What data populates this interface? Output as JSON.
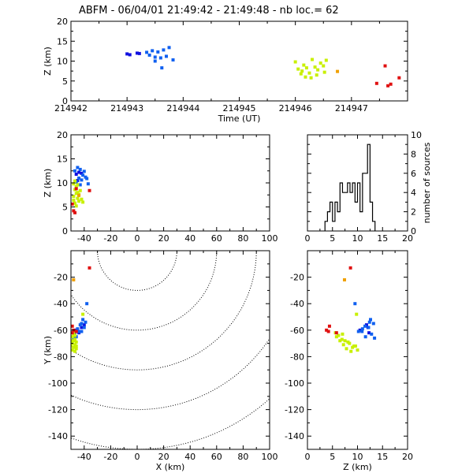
{
  "figure": {
    "title": "ABFM - 06/04/01 21:49:42 - 21:49:48 - nb loc.=      62"
  },
  "colors": {
    "blue_dark": "#1010e0",
    "blue": "#1060f0",
    "yellow_green": "#c8f000",
    "yellow": "#e8e000",
    "orange": "#f0a000",
    "red": "#e01010",
    "axis": "#000000"
  },
  "chart_data": [
    {
      "id": "time_altitude",
      "type": "scatter",
      "title": "",
      "xlabel": "Time (UT)",
      "ylabel": "Z (km)",
      "xlim": [
        214942,
        214948
      ],
      "ylim": [
        0,
        20
      ],
      "xticks": [
        214942,
        214943,
        214944,
        214945,
        214946,
        214947
      ],
      "yticks": [
        0,
        5,
        10,
        15,
        20
      ],
      "series": [
        {
          "color": "#1010e0",
          "points": [
            [
              214943.0,
              11.8
            ],
            [
              214943.05,
              11.6
            ],
            [
              214943.18,
              12.0
            ],
            [
              214943.22,
              11.9
            ]
          ]
        },
        {
          "color": "#1060f0",
          "points": [
            [
              214943.35,
              12.2
            ],
            [
              214943.4,
              11.5
            ],
            [
              214943.45,
              12.6
            ],
            [
              214943.5,
              11.0
            ],
            [
              214943.55,
              12.3
            ],
            [
              214943.6,
              10.8
            ],
            [
              214943.65,
              12.8
            ],
            [
              214943.7,
              11.2
            ],
            [
              214943.75,
              13.4
            ],
            [
              214943.62,
              8.3
            ],
            [
              214943.82,
              10.3
            ],
            [
              214943.5,
              10.0
            ]
          ]
        },
        {
          "color": "#c8f000",
          "points": [
            [
              214946.0,
              9.8
            ],
            [
              214946.05,
              8.0
            ],
            [
              214946.1,
              6.8
            ],
            [
              214946.12,
              7.5
            ],
            [
              214946.15,
              9.0
            ],
            [
              214946.18,
              6.0
            ],
            [
              214946.2,
              8.3
            ],
            [
              214946.25,
              7.0
            ],
            [
              214946.28,
              5.8
            ],
            [
              214946.3,
              10.4
            ],
            [
              214946.35,
              8.5
            ],
            [
              214946.38,
              6.5
            ],
            [
              214946.4,
              7.8
            ],
            [
              214946.45,
              9.5
            ],
            [
              214946.5,
              8.8
            ],
            [
              214946.52,
              7.2
            ],
            [
              214946.55,
              10.2
            ]
          ]
        },
        {
          "color": "#f0a000",
          "points": [
            [
              214946.75,
              7.4
            ]
          ]
        },
        {
          "color": "#e01010",
          "points": [
            [
              214947.45,
              4.4
            ],
            [
              214947.6,
              8.8
            ],
            [
              214947.65,
              3.8
            ],
            [
              214947.7,
              4.2
            ],
            [
              214947.85,
              5.8
            ]
          ]
        }
      ]
    },
    {
      "id": "x_altitude",
      "type": "scatter",
      "title": "",
      "xlabel": "",
      "ylabel": "Z (km)",
      "xlim": [
        -50,
        100
      ],
      "ylim": [
        0,
        20
      ],
      "xticks": [
        -40,
        -20,
        0,
        20,
        40,
        60,
        80,
        100
      ],
      "yticks": [
        0,
        5,
        10,
        15,
        20
      ],
      "series": [
        {
          "color": "#1010e0",
          "points": [
            [
              -46,
              11.8
            ],
            [
              -44,
              12.2
            ],
            [
              -42,
              12.0
            ],
            [
              -45,
              10.5
            ]
          ]
        },
        {
          "color": "#1060f0",
          "points": [
            [
              -47,
              12.5
            ],
            [
              -45,
              13.2
            ],
            [
              -43,
              12.8
            ],
            [
              -41,
              11.6
            ],
            [
              -39,
              11.2
            ],
            [
              -44,
              11.0
            ],
            [
              -42,
              10.6
            ],
            [
              -46,
              10.2
            ],
            [
              -40,
              12.4
            ],
            [
              -37,
              9.8
            ],
            [
              -38,
              10.9
            ],
            [
              -43,
              9.6
            ]
          ]
        },
        {
          "color": "#c8f000",
          "points": [
            [
              -48,
              9.8
            ],
            [
              -47,
              8.6
            ],
            [
              -46,
              7.8
            ],
            [
              -45,
              6.8
            ],
            [
              -44,
              6.2
            ],
            [
              -48,
              7.2
            ],
            [
              -47,
              5.8
            ],
            [
              -46,
              9.2
            ],
            [
              -45,
              8.0
            ],
            [
              -44,
              7.6
            ],
            [
              -42,
              6.6
            ],
            [
              -41,
              6.0
            ],
            [
              -43,
              8.4
            ],
            [
              -48,
              6.4
            ],
            [
              -46,
              5.2
            ],
            [
              -45,
              9.6
            ],
            [
              -47,
              10.4
            ]
          ]
        },
        {
          "color": "#f0a000",
          "points": [
            [
              -44,
              7.4
            ]
          ]
        },
        {
          "color": "#e01010",
          "points": [
            [
              -49,
              5.6
            ],
            [
              -48,
              4.2
            ],
            [
              -47,
              3.8
            ],
            [
              -46,
              8.8
            ],
            [
              -36,
              8.4
            ]
          ]
        }
      ]
    },
    {
      "id": "altitude_histogram",
      "type": "bar",
      "title": "",
      "xlabel": "",
      "ylabel": "number of sources",
      "xlim": [
        0,
        20
      ],
      "ylim": [
        0,
        10
      ],
      "xticks": [
        0,
        5,
        10,
        15,
        20
      ],
      "yticks": [
        0,
        2,
        4,
        6,
        8,
        10
      ],
      "bin_width": 0.5,
      "categories": [
        3.5,
        4,
        4.5,
        5,
        5.5,
        6,
        6.5,
        7,
        7.5,
        8,
        8.5,
        9,
        9.5,
        10,
        10.5,
        11,
        11.5,
        12,
        12.5,
        13
      ],
      "values": [
        1,
        2,
        3,
        1,
        3,
        2,
        5,
        4,
        4,
        5,
        4,
        5,
        3,
        5,
        2,
        6,
        6,
        9,
        3,
        1
      ]
    },
    {
      "id": "plan_view",
      "type": "scatter",
      "title": "",
      "xlabel": "X (km)",
      "ylabel": "Y (km)",
      "xlim": [
        -50,
        100
      ],
      "ylim": [
        -150,
        0
      ],
      "xticks": [
        -40,
        -20,
        0,
        20,
        40,
        60,
        80,
        100
      ],
      "yticks": [
        -20,
        -40,
        -60,
        -80,
        -100,
        -120,
        -140
      ],
      "range_rings_km": [
        30,
        60,
        90,
        120,
        150
      ],
      "series": [
        {
          "color": "#1010e0",
          "points": [
            [
              -42,
              -58
            ],
            [
              -40,
              -56
            ],
            [
              -44,
              -62
            ],
            [
              -46,
              -60
            ]
          ]
        },
        {
          "color": "#1060f0",
          "points": [
            [
              -41,
              -52
            ],
            [
              -42,
              -55
            ],
            [
              -40,
              -58
            ],
            [
              -43,
              -56
            ],
            [
              -45,
              -59
            ],
            [
              -47,
              -63
            ],
            [
              -48,
              -66
            ],
            [
              -44,
              -61
            ],
            [
              -46,
              -65
            ],
            [
              -39,
              -54
            ],
            [
              -38,
              -40
            ],
            [
              -42,
              -61
            ]
          ]
        },
        {
          "color": "#c8f000",
          "points": [
            [
              -49,
              -65
            ],
            [
              -48,
              -68
            ],
            [
              -47,
              -71
            ],
            [
              -46,
              -74
            ],
            [
              -49,
              -70
            ],
            [
              -48,
              -73
            ],
            [
              -47,
              -67
            ],
            [
              -50,
              -72
            ],
            [
              -46,
              -69
            ],
            [
              -48,
              -63
            ],
            [
              -47,
              -76
            ],
            [
              -49,
              -75
            ],
            [
              -46,
              -72
            ],
            [
              -47,
              -64
            ],
            [
              -48,
              -62
            ],
            [
              -50,
              -68
            ],
            [
              -41,
              -48
            ]
          ]
        },
        {
          "color": "#f0a000",
          "points": [
            [
              -48,
              -22
            ]
          ]
        },
        {
          "color": "#e01010",
          "points": [
            [
              -36,
              -13
            ],
            [
              -49,
              -57
            ],
            [
              -48,
              -60
            ],
            [
              -46,
              -61
            ],
            [
              -49,
              -62
            ]
          ]
        }
      ]
    },
    {
      "id": "altitude_y",
      "type": "scatter",
      "title": "",
      "xlabel": "Z (km)",
      "ylabel": "",
      "xlim": [
        0,
        20
      ],
      "ylim": [
        -150,
        0
      ],
      "xticks": [
        0,
        5,
        10,
        15,
        20
      ],
      "yticks": [
        -20,
        -40,
        -60,
        -80,
        -100,
        -120,
        -140
      ],
      "series": [
        {
          "color": "#1010e0",
          "points": [
            [
              12.1,
              -58
            ],
            [
              11.8,
              -56
            ],
            [
              12.3,
              -62
            ],
            [
              10.5,
              -60
            ]
          ]
        },
        {
          "color": "#1060f0",
          "points": [
            [
              12.6,
              -52
            ],
            [
              13.2,
              -55
            ],
            [
              12.2,
              -58
            ],
            [
              11.5,
              -57
            ],
            [
              11.0,
              -59
            ],
            [
              12.8,
              -63
            ],
            [
              13.4,
              -66
            ],
            [
              10.9,
              -61
            ],
            [
              11.6,
              -65
            ],
            [
              12.4,
              -54
            ],
            [
              9.5,
              -40
            ],
            [
              10.2,
              -61
            ]
          ]
        },
        {
          "color": "#c8f000",
          "points": [
            [
              5.8,
              -65
            ],
            [
              6.5,
              -68
            ],
            [
              7.2,
              -71
            ],
            [
              7.8,
              -74
            ],
            [
              8.4,
              -70
            ],
            [
              9.0,
              -73
            ],
            [
              6.9,
              -67
            ],
            [
              9.6,
              -72
            ],
            [
              8.1,
              -69
            ],
            [
              7.0,
              -63
            ],
            [
              8.7,
              -76
            ],
            [
              10.0,
              -75
            ],
            [
              9.3,
              -72
            ],
            [
              6.2,
              -64
            ],
            [
              5.6,
              -62
            ],
            [
              7.5,
              -68
            ],
            [
              9.8,
              -48
            ]
          ]
        },
        {
          "color": "#f0a000",
          "points": [
            [
              7.4,
              -22
            ]
          ]
        },
        {
          "color": "#e01010",
          "points": [
            [
              8.6,
              -13
            ],
            [
              4.4,
              -57
            ],
            [
              3.8,
              -60
            ],
            [
              4.2,
              -61
            ],
            [
              5.8,
              -62
            ]
          ]
        }
      ]
    }
  ]
}
